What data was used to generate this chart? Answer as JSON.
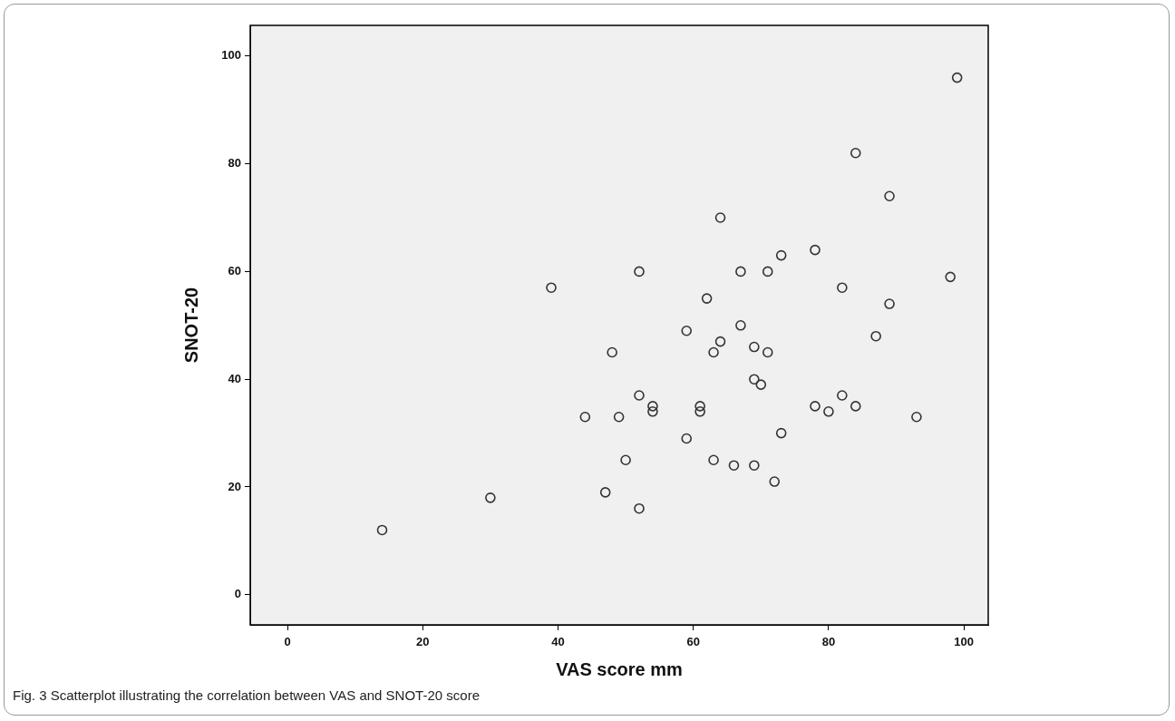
{
  "chart_data": {
    "type": "scatter",
    "xlabel": "VAS score mm",
    "ylabel": "SNOT-20",
    "annotations": [
      "Fig. 3 Scatterplot illustrating the correlation between VAS and SNOT-20 score"
    ],
    "xlim": [
      -5.5,
      103.6
    ],
    "ylim": [
      -5.6,
      105.7
    ],
    "xticks": [
      0,
      20,
      40,
      60,
      80,
      100
    ],
    "yticks": [
      0,
      20,
      40,
      60,
      80,
      100
    ],
    "grid": false,
    "legend": false,
    "marker": "circle",
    "series": [
      {
        "color": "#333333",
        "x": [
          14,
          30,
          39,
          44,
          47,
          48,
          49,
          50,
          52,
          52,
          52,
          54,
          54,
          59,
          59,
          61,
          61,
          62,
          63,
          63,
          64,
          64,
          66,
          67,
          67,
          69,
          69,
          69,
          70,
          71,
          71,
          72,
          73,
          73,
          78,
          78,
          80,
          82,
          82,
          84,
          84,
          87,
          89,
          89,
          93,
          98,
          99
        ],
        "values": [
          12,
          18,
          57,
          33,
          19,
          45,
          33,
          25,
          60,
          37,
          16,
          35,
          34,
          49,
          29,
          35,
          34,
          55,
          45,
          25,
          47,
          70,
          24,
          60,
          50,
          46,
          40,
          24,
          39,
          60,
          45,
          21,
          63,
          30,
          64,
          35,
          34,
          57,
          37,
          82,
          35,
          48,
          54,
          74,
          33,
          59,
          96
        ]
      }
    ]
  }
}
